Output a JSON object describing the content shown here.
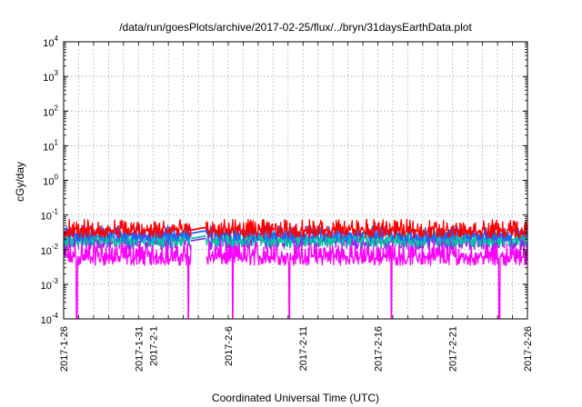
{
  "chart_data": {
    "type": "line",
    "title": "/data/run/goesPlots/archive/2017-02-25/flux/../bryn/31daysEarthData.plot",
    "xlabel": "Coordinated Universal Time (UTC)",
    "ylabel": "cGy/day",
    "x_scale": "time",
    "y_scale": "log",
    "xlim": [
      "2017-01-26",
      "2017-02-26"
    ],
    "ylim": [
      0.0001,
      10000
    ],
    "grid": true,
    "legend": "none",
    "x_ticks": [
      "2017-1-26",
      "2017-1-31",
      "2017-2-1",
      "2017-2-6",
      "2017-2-11",
      "2017-2-16",
      "2017-2-21",
      "2017-2-26"
    ],
    "y_ticks": [
      {
        "base": "10",
        "exp": "-4"
      },
      {
        "base": "10",
        "exp": "-3"
      },
      {
        "base": "10",
        "exp": "-2"
      },
      {
        "base": "10",
        "exp": "-1"
      },
      {
        "base": "10",
        "exp": "0"
      },
      {
        "base": "10",
        "exp": "1"
      },
      {
        "base": "10",
        "exp": "2"
      },
      {
        "base": "10",
        "exp": "3"
      },
      {
        "base": "10",
        "exp": "4"
      }
    ],
    "data_gap": {
      "start": "2017-02-03 13:00",
      "end": "2017-02-04 12:00"
    },
    "dropouts": [
      "2017-01-26 21:00",
      "2017-02-03 08:00",
      "2017-02-06 07:00",
      "2017-02-10 02:00",
      "2017-02-16 22:00",
      "2017-02-24 03:00"
    ],
    "series": [
      {
        "color": "#ff0000",
        "typical": 0.035,
        "min": 0.022,
        "max": 0.075
      },
      {
        "color": "#1f5fff",
        "typical": 0.028,
        "min": 0.017,
        "max": 0.05
      },
      {
        "color": "#00c8a0",
        "typical": 0.02,
        "min": 0.012,
        "max": 0.035
      },
      {
        "color": "#8a2be2",
        "typical": 0.017,
        "min": 0.01,
        "max": 0.03
      },
      {
        "color": "#ff00ff",
        "typical": 0.006,
        "min": 0.0035,
        "max": 0.02
      }
    ]
  }
}
